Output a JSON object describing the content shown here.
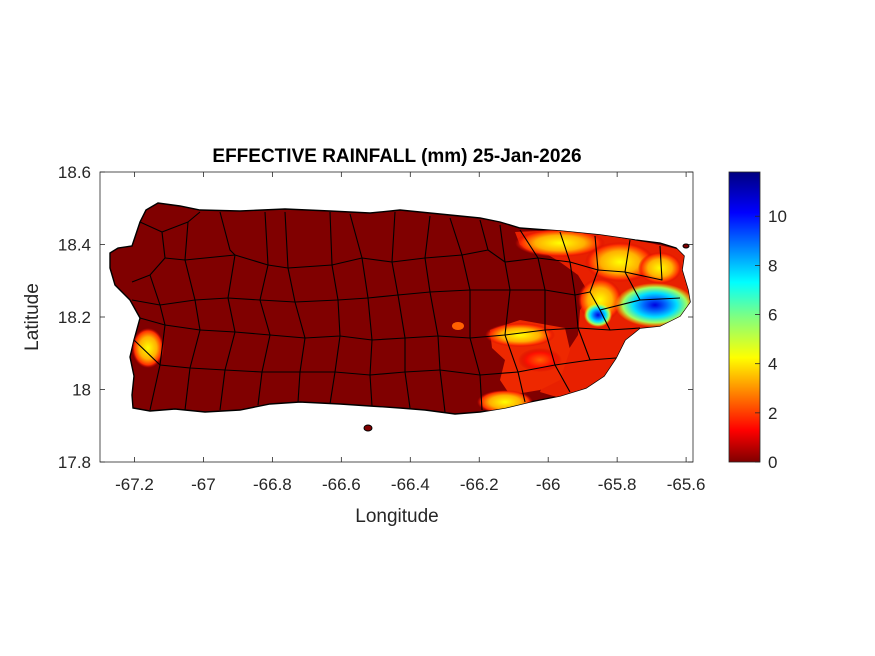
{
  "title": "EFFECTIVE RAINFALL (mm) 25-Jan-2026",
  "map": {
    "xlabel": "Longitude",
    "ylabel": "Latitude",
    "xlim": [
      -67.3,
      -65.58
    ],
    "ylim": [
      17.8,
      18.6
    ],
    "xticks": [
      {
        "value": -67.2,
        "label": "-67.2"
      },
      {
        "value": -67.0,
        "label": "-67"
      },
      {
        "value": -66.8,
        "label": "-66.8"
      },
      {
        "value": -66.6,
        "label": "-66.6"
      },
      {
        "value": -66.4,
        "label": "-66.4"
      },
      {
        "value": -66.2,
        "label": "-66.2"
      },
      {
        "value": -66.0,
        "label": "-66"
      },
      {
        "value": -65.8,
        "label": "-65.8"
      },
      {
        "value": -65.6,
        "label": "-65.6"
      }
    ],
    "yticks": [
      {
        "value": 17.8,
        "label": "17.8"
      },
      {
        "value": 18.0,
        "label": "18"
      },
      {
        "value": 18.2,
        "label": "18.2"
      },
      {
        "value": 18.4,
        "label": "18.4"
      },
      {
        "value": 18.6,
        "label": "18.6"
      }
    ],
    "base_color": "#800000",
    "boundary_color": "#000000"
  },
  "colorbar": {
    "min": 0,
    "max": 11.8,
    "colormap": "jet",
    "ticks": [
      {
        "value": 0,
        "label": "0"
      },
      {
        "value": 2,
        "label": "2"
      },
      {
        "value": 4,
        "label": "4"
      },
      {
        "value": 6,
        "label": "6"
      },
      {
        "value": 8,
        "label": "8"
      },
      {
        "value": 10,
        "label": "10"
      }
    ]
  },
  "rain_patches": [
    {
      "region": "northeast coast",
      "value": 2.5
    },
    {
      "region": "el yunque area",
      "value": 4.5
    },
    {
      "region": "east peak",
      "value": 10.5
    },
    {
      "region": "southeast interior",
      "value": 2.0
    },
    {
      "region": "south coast near -66.1",
      "value": 4.5
    },
    {
      "region": "southwest near -67.2",
      "value": 4.5
    }
  ]
}
